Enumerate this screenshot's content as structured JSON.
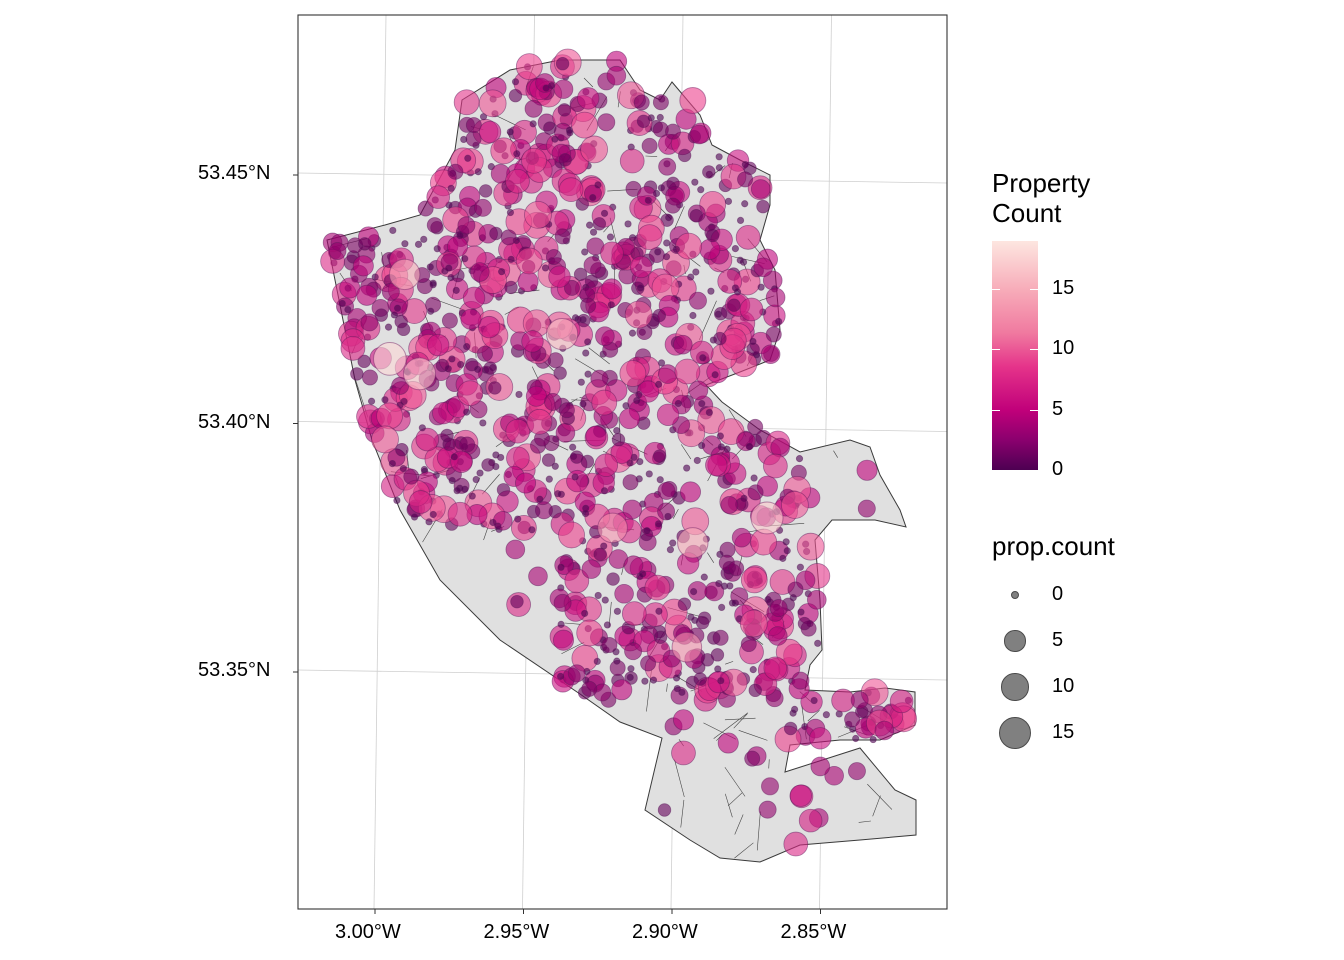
{
  "chart_data": {
    "type": "scatter",
    "subtype": "bubble map over polygon boundaries",
    "x_axis": {
      "ticks": [
        "3.00°W",
        "2.95°W",
        "2.90°W",
        "2.85°W"
      ],
      "values": [
        -3.0,
        -2.95,
        -2.9,
        -2.85
      ],
      "range": [
        -3.026,
        -2.807
      ]
    },
    "y_axis": {
      "ticks": [
        "53.35°N",
        "53.40°N",
        "53.45°N"
      ],
      "values": [
        53.35,
        53.4,
        53.45
      ],
      "range": [
        53.303,
        53.483
      ]
    },
    "grid": true,
    "fill_colors": {
      "base": "#e0e0e0",
      "outline": "#3a3a3a",
      "low": "#4d0052",
      "mid": "#c0007a",
      "high": "#fde6e0"
    },
    "color_legend": {
      "title": "Property\nCount",
      "title_lines": [
        "Property",
        "Count"
      ],
      "ticks": [
        "0",
        "5",
        "10",
        "15"
      ],
      "values": [
        0,
        5,
        10,
        15
      ],
      "range": [
        0,
        19
      ]
    },
    "size_legend": {
      "title": "prop.count",
      "ticks": [
        "0",
        "5",
        "10",
        "15"
      ],
      "values": [
        0,
        5,
        10,
        15
      ]
    },
    "legend_position": "right",
    "notable_points": [
      {
        "lon": -2.99,
        "lat": 53.43,
        "count": 15
      },
      {
        "lon": -2.995,
        "lat": 53.413,
        "count": 18
      },
      {
        "lon": -2.985,
        "lat": 53.41,
        "count": 17
      },
      {
        "lon": -2.937,
        "lat": 53.418,
        "count": 16
      },
      {
        "lon": -2.92,
        "lat": 53.379,
        "count": 14
      },
      {
        "lon": -2.893,
        "lat": 53.376,
        "count": 15
      },
      {
        "lon": -2.868,
        "lat": 53.381,
        "count": 17
      },
      {
        "lon": -2.895,
        "lat": 53.355,
        "count": 14
      },
      {
        "lon": -2.893,
        "lat": 53.465,
        "count": 10
      },
      {
        "lon": -2.867,
        "lat": 53.327,
        "count": 3
      }
    ]
  }
}
